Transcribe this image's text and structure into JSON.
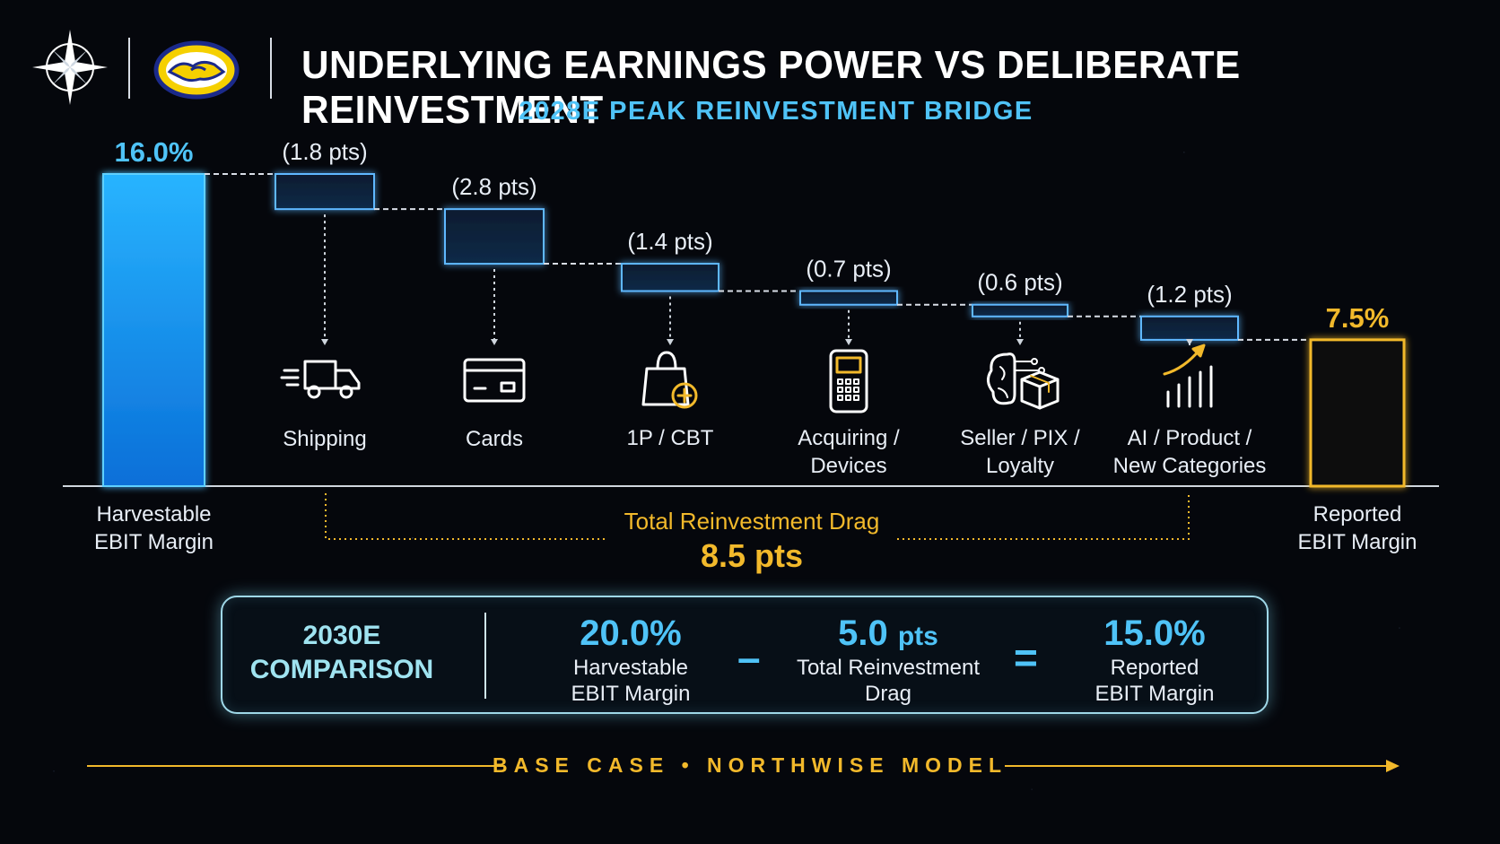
{
  "header": {
    "title": "UNDERLYING EARNINGS POWER VS DELIBERATE REINVESTMENT",
    "subtitle": "2028E PEAK REINVESTMENT BRIDGE",
    "logos": [
      "compass-rose-icon",
      "handshake-logo"
    ]
  },
  "colors": {
    "blue": "#1aa3ff",
    "gold": "#f2b92b",
    "cyan_text": "#4fc3f7",
    "background": "#05070c"
  },
  "chart_data": {
    "type": "bar",
    "subtype": "waterfall",
    "unit": "% EBIT margin",
    "start": {
      "label": "Harvestable EBIT Margin",
      "value": 16.0,
      "value_label": "16.0%"
    },
    "steps": [
      {
        "label": "Shipping",
        "value": -1.8,
        "value_label": "(1.8 pts)",
        "icon": "truck-icon"
      },
      {
        "label": "Cards",
        "value": -2.8,
        "value_label": "(2.8 pts)",
        "icon": "credit-card-icon"
      },
      {
        "label": "1P / CBT",
        "value": -1.4,
        "value_label": "(1.4 pts)",
        "icon": "shopping-bag-plus-icon"
      },
      {
        "label": "Acquiring / Devices",
        "value": -0.7,
        "value_label": "(0.7 pts)",
        "icon": "pos-terminal-icon"
      },
      {
        "label": "Seller / PIX / Loyalty",
        "value": -0.6,
        "value_label": "(0.6 pts)",
        "icon": "brain-box-icon"
      },
      {
        "label": "AI / Product / New Categories",
        "value": -1.2,
        "value_label": "(1.2 pts)",
        "icon": "growth-chart-icon"
      }
    ],
    "end": {
      "label": "Reported EBIT Margin",
      "value": 7.5,
      "value_label": "7.5%"
    },
    "total_drag": {
      "label": "Total Reinvestment Drag",
      "value": 8.5,
      "value_label": "8.5 pts"
    },
    "ylim": [
      0,
      16.5
    ]
  },
  "comparison": {
    "title_line1": "2030E",
    "title_line2": "COMPARISON",
    "harvestable_value": "20.0%",
    "harvestable_label1": "Harvestable",
    "harvestable_label2": "EBIT Margin",
    "minus": "–",
    "drag_value": "5.0",
    "drag_unit": "pts",
    "drag_label1": "Total Reinvestment",
    "drag_label2": "Drag",
    "equals": "=",
    "reported_value": "15.0%",
    "reported_label1": "Reported",
    "reported_label2": "EBIT Margin"
  },
  "footer": {
    "text": "BASE CASE • NORTHWISE MODEL"
  }
}
